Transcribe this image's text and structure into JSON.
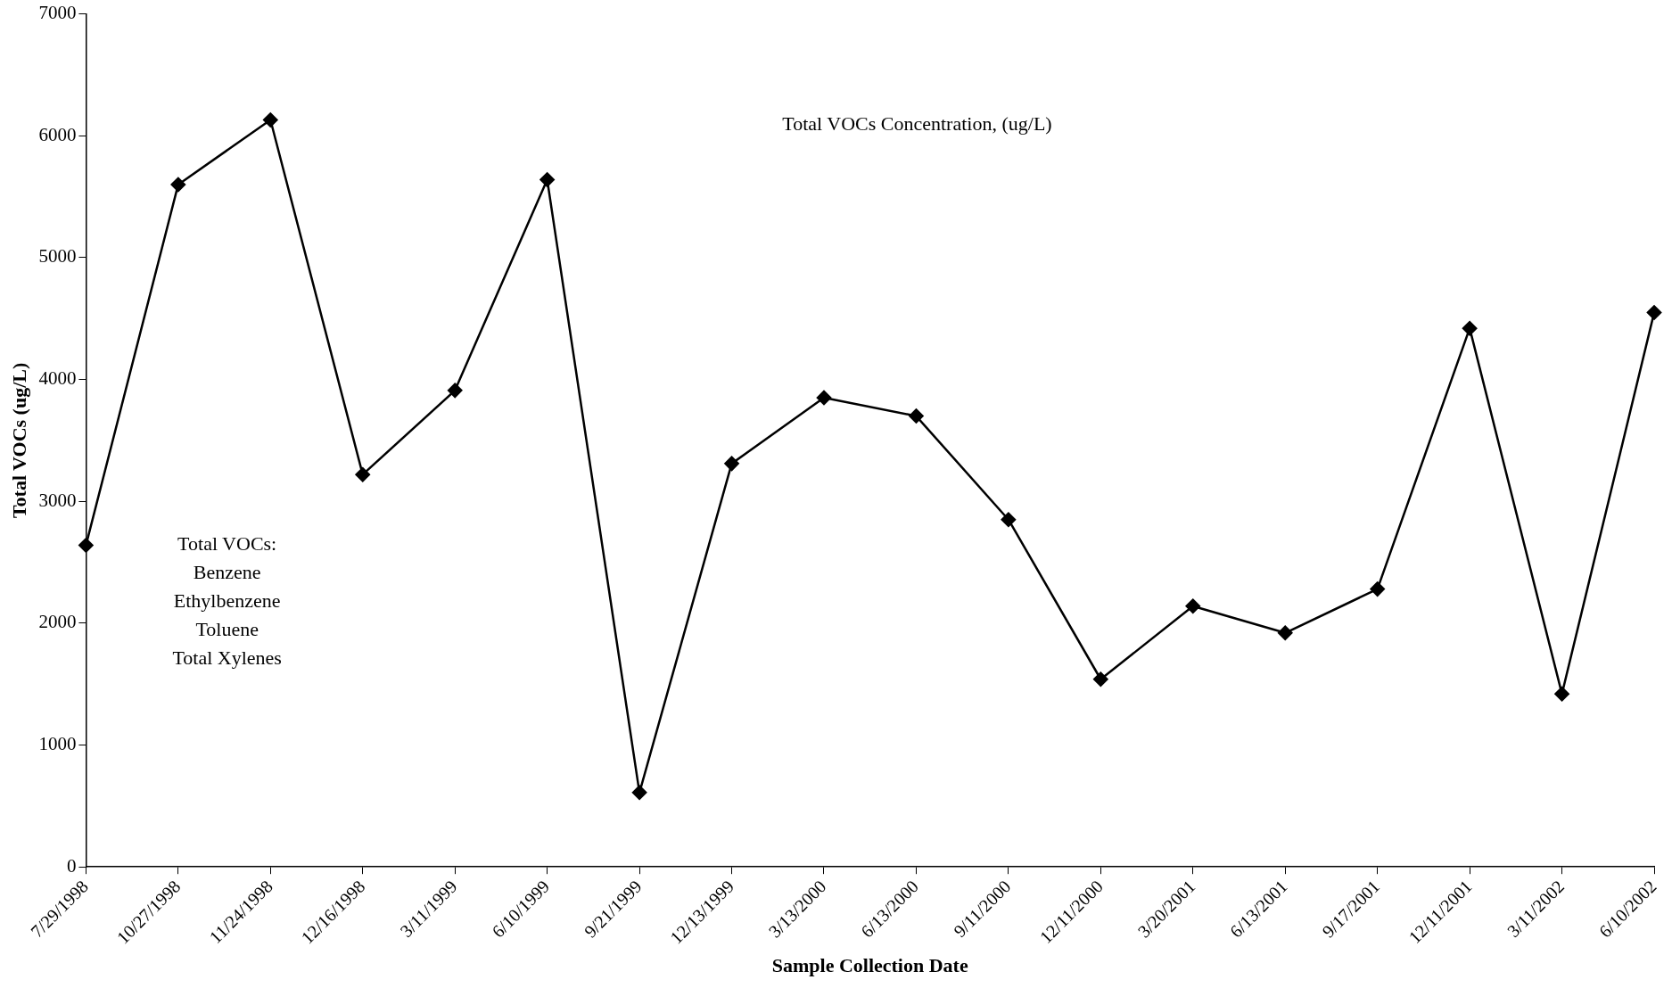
{
  "chart_data": {
    "type": "line",
    "xlabel": "Sample Collection Date",
    "ylabel": "Total VOCs (ug/L)",
    "categories": [
      "7/29/1998",
      "10/27/1998",
      "11/24/1998",
      "12/16/1998",
      "3/11/1999",
      "6/10/1999",
      "9/21/1999",
      "12/13/1999",
      "3/13/2000",
      "6/13/2000",
      "9/11/2000",
      "12/11/2000",
      "3/20/2001",
      "6/13/2001",
      "9/17/2001",
      "12/11/2001",
      "3/11/2002",
      "6/10/2002"
    ],
    "series": [
      {
        "color": "#000000",
        "values": [
          2640,
          5600,
          6130,
          3220,
          3910,
          5640,
          610,
          3310,
          3850,
          3700,
          2850,
          1540,
          2140,
          1920,
          2280,
          4420,
          1420,
          4550
        ]
      }
    ],
    "ylim": [
      0,
      7000
    ],
    "yticks": [
      0,
      1000,
      2000,
      3000,
      4000,
      5000,
      6000,
      7000
    ],
    "marker": "diamond",
    "line_style": "solid",
    "grid": false,
    "legend": false,
    "annotations": [
      "Total VOCs Concentration, (ug/L)",
      "Total VOCs:\nBenzene\nEthylbenzene\nToluene\nTotal Xylenes"
    ]
  }
}
